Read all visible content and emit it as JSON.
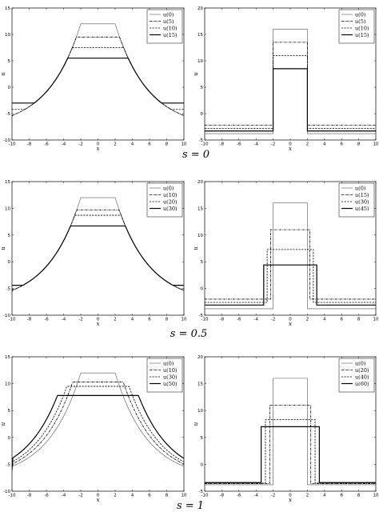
{
  "captions": [
    "s = 0",
    "s = 0.5",
    "s = 1"
  ],
  "styles": {
    "thin": {
      "stroke": "#555555",
      "width": 0.6,
      "dash": ""
    },
    "dashdot": {
      "stroke": "#000000",
      "width": 0.8,
      "dash": "3 1 0.8 1"
    },
    "dashed": {
      "stroke": "#000000",
      "width": 0.8,
      "dash": "2.2 1.4"
    },
    "thick": {
      "stroke": "#000000",
      "width": 1.2,
      "dash": ""
    }
  },
  "chart_data": [
    {
      "type": "line",
      "xlabel": "x",
      "ylabel": "u",
      "xlim": [
        -10,
        10
      ],
      "ylim": [
        -10,
        15
      ],
      "xticks": [
        -10,
        -8,
        -6,
        -4,
        -2,
        0,
        2,
        4,
        6,
        8,
        10
      ],
      "yticks": [
        -10,
        -5,
        0,
        5,
        10,
        15
      ],
      "series": [
        {
          "name": "u(0)",
          "style": "thin",
          "kind": "exp",
          "params": {
            "A": 12,
            "a": 2,
            "k": 0.262,
            "floor": 0
          }
        },
        {
          "name": "u(5)",
          "style": "dashdot",
          "kind": "step",
          "params": {
            "plateau": 9.5,
            "a": 2,
            "k": 0.262,
            "floor": -5.5
          }
        },
        {
          "name": "u(10)",
          "style": "dashed",
          "kind": "step",
          "params": {
            "plateau": 7.5,
            "a": 2,
            "k": 0.262,
            "floor": -4.2
          }
        },
        {
          "name": "u(15)",
          "style": "thick",
          "kind": "step",
          "params": {
            "plateau": 5.5,
            "a": 2,
            "k": 0.262,
            "floor": -3
          }
        }
      ]
    },
    {
      "type": "line",
      "xlabel": "x",
      "ylabel": "u",
      "xlim": [
        -10,
        10
      ],
      "ylim": [
        -5,
        20
      ],
      "xticks": [
        -10,
        -8,
        -6,
        -4,
        -2,
        0,
        2,
        4,
        6,
        8,
        10
      ],
      "yticks": [
        -5,
        0,
        5,
        10,
        15,
        20
      ],
      "series": [
        {
          "name": "u(0)",
          "style": "thin",
          "kind": "box",
          "params": {
            "top": 16,
            "a": 2,
            "floor": -3.8
          }
        },
        {
          "name": "u(5)",
          "style": "dashdot",
          "kind": "box",
          "params": {
            "top": 13.5,
            "a": 2,
            "floor": -2.2
          }
        },
        {
          "name": "u(10)",
          "style": "dashed",
          "kind": "box",
          "params": {
            "top": 11,
            "a": 2,
            "floor": -2.8
          }
        },
        {
          "name": "u(15)",
          "style": "thick",
          "kind": "box",
          "params": {
            "top": 8.5,
            "a": 2,
            "floor": -3.3
          }
        }
      ]
    },
    {
      "type": "line",
      "xlabel": "x",
      "ylabel": "u",
      "xlim": [
        -10,
        10
      ],
      "ylim": [
        -10,
        15
      ],
      "xticks": [
        -10,
        -8,
        -6,
        -4,
        -2,
        0,
        2,
        4,
        6,
        8,
        10
      ],
      "yticks": [
        -10,
        -5,
        0,
        5,
        10,
        15
      ],
      "series": [
        {
          "name": "u(0)",
          "style": "thin",
          "kind": "exp",
          "params": {
            "A": 12,
            "a": 2,
            "k": 0.262,
            "floor": 0
          }
        },
        {
          "name": "u(10)",
          "style": "dashdot",
          "kind": "step",
          "params": {
            "plateau": 9.7,
            "a": 2,
            "k": 0.262,
            "floor": -5.6
          }
        },
        {
          "name": "u(20)",
          "style": "dashed",
          "kind": "step",
          "params": {
            "plateau": 8.7,
            "a": 2,
            "k": 0.262,
            "floor": -5.1
          }
        },
        {
          "name": "u(30)",
          "style": "thick",
          "kind": "step",
          "params": {
            "plateau": 6.7,
            "a": 2,
            "k": 0.262,
            "floor": -4.4
          }
        }
      ]
    },
    {
      "type": "line",
      "xlabel": "x",
      "ylabel": "u",
      "xlim": [
        -10,
        10
      ],
      "ylim": [
        -5,
        20
      ],
      "xticks": [
        -10,
        -8,
        -6,
        -4,
        -2,
        0,
        2,
        4,
        6,
        8,
        10
      ],
      "yticks": [
        -5,
        0,
        5,
        10,
        15,
        20
      ],
      "series": [
        {
          "name": "u(0)",
          "style": "thin",
          "kind": "box",
          "params": {
            "top": 16,
            "a": 2,
            "floor": -3.8
          }
        },
        {
          "name": "u(15)",
          "style": "dashdot",
          "kind": "box",
          "params": {
            "top": 11,
            "a": 2.3,
            "floor": -2
          }
        },
        {
          "name": "u(30)",
          "style": "dashed",
          "kind": "box",
          "params": {
            "top": 7.3,
            "a": 2.7,
            "floor": -2.6
          }
        },
        {
          "name": "u(45)",
          "style": "thick",
          "kind": "box",
          "params": {
            "top": 4.4,
            "a": 3.1,
            "floor": -3.1
          }
        }
      ]
    },
    {
      "type": "line",
      "xlabel": "x",
      "ylabel": "u",
      "xlim": [
        -10,
        10
      ],
      "ylim": [
        -10,
        15
      ],
      "xticks": [
        -10,
        -8,
        -6,
        -4,
        -2,
        0,
        2,
        4,
        6,
        8,
        10
      ],
      "yticks": [
        -10,
        -5,
        0,
        5,
        10,
        15
      ],
      "series": [
        {
          "name": "u(0)",
          "style": "thin",
          "kind": "exp",
          "params": {
            "A": 12,
            "a": 2,
            "k": 0.262,
            "floor": 0
          }
        },
        {
          "name": "u(10)",
          "style": "dashdot",
          "kind": "step",
          "params": {
            "plateau": 10.3,
            "a": 2.6,
            "k": 0.262,
            "floor": -6.2
          }
        },
        {
          "name": "u(30)",
          "style": "dashed",
          "kind": "step",
          "params": {
            "plateau": 9.5,
            "a": 3.1,
            "k": 0.262,
            "floor": -6
          }
        },
        {
          "name": "u(50)",
          "style": "thick",
          "kind": "step",
          "params": {
            "plateau": 7.8,
            "a": 3.8,
            "k": 0.262,
            "floor": -5.7
          }
        }
      ]
    },
    {
      "type": "line",
      "xlabel": "x",
      "ylabel": "u",
      "xlim": [
        -10,
        10
      ],
      "ylim": [
        -5,
        20
      ],
      "xticks": [
        -10,
        -8,
        -6,
        -4,
        -2,
        0,
        2,
        4,
        6,
        8,
        10
      ],
      "yticks": [
        -5,
        0,
        5,
        10,
        15,
        20
      ],
      "series": [
        {
          "name": "u(0)",
          "style": "thin",
          "kind": "box",
          "params": {
            "top": 16,
            "a": 2,
            "floor": -3.8
          }
        },
        {
          "name": "u(20)",
          "style": "dashdot",
          "kind": "box",
          "params": {
            "top": 11,
            "a": 2.4,
            "floor": -3.6
          }
        },
        {
          "name": "u(40)",
          "style": "dashed",
          "kind": "box",
          "params": {
            "top": 8.3,
            "a": 2.9,
            "floor": -3.5
          }
        },
        {
          "name": "u(60)",
          "style": "thick",
          "kind": "box",
          "params": {
            "top": 7,
            "a": 3.4,
            "floor": -3.4
          }
        }
      ]
    }
  ]
}
